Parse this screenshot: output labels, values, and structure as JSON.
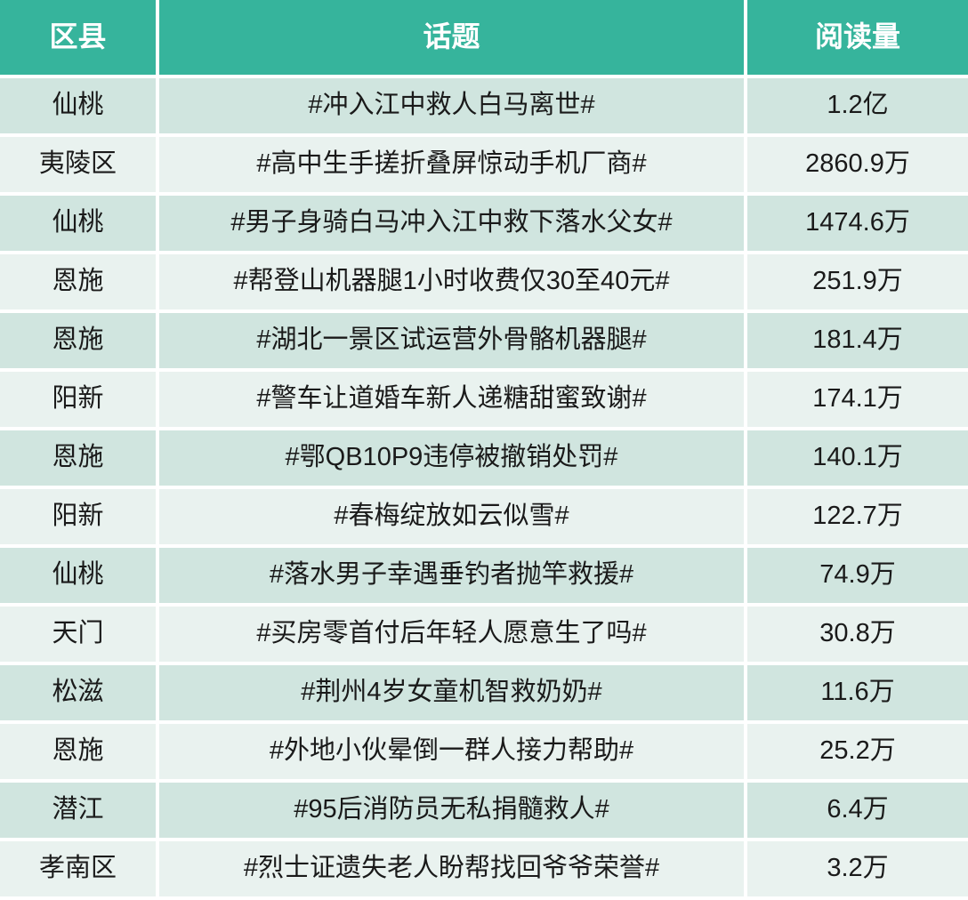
{
  "chart_data": {
    "type": "table",
    "columns": [
      "区县",
      "话题",
      "阅读量"
    ],
    "rows": [
      [
        "仙桃",
        "#冲入江中救人白马离世#",
        "1.2亿"
      ],
      [
        "夷陵区",
        "#高中生手搓折叠屏惊动手机厂商#",
        "2860.9万"
      ],
      [
        "仙桃",
        "#男子身骑白马冲入江中救下落水父女#",
        "1474.6万"
      ],
      [
        "恩施",
        "#帮登山机器腿1小时收费仅30至40元#",
        "251.9万"
      ],
      [
        "恩施",
        "#湖北一景区试运营外骨骼机器腿#",
        "181.4万"
      ],
      [
        "阳新",
        "#警车让道婚车新人递糖甜蜜致谢#",
        "174.1万"
      ],
      [
        "恩施",
        "#鄂QB10P9违停被撤销处罚#",
        "140.1万"
      ],
      [
        "阳新",
        "#春梅绽放如云似雪#",
        "122.7万"
      ],
      [
        "仙桃",
        "#落水男子幸遇垂钓者抛竿救援#",
        "74.9万"
      ],
      [
        "天门",
        "#买房零首付后年轻人愿意生了吗#",
        "30.8万"
      ],
      [
        "松滋",
        "#荆州4岁女童机智救奶奶#",
        "11.6万"
      ],
      [
        "恩施",
        "#外地小伙晕倒一群人接力帮助#",
        "25.2万"
      ],
      [
        "潜江",
        "#95后消防员无私捐髓救人#",
        "6.4万"
      ],
      [
        "孝南区",
        "#烈士证遗失老人盼帮找回爷爷荣誉#",
        "3.2万"
      ]
    ]
  },
  "colors": {
    "header_bg": "#36B49C",
    "row_odd_bg": "#D0E5DF",
    "row_even_bg": "#E9F2EF",
    "header_text": "#FFFFFF",
    "body_text": "#1A1A1A",
    "gap_color": "#FFFFFF"
  }
}
